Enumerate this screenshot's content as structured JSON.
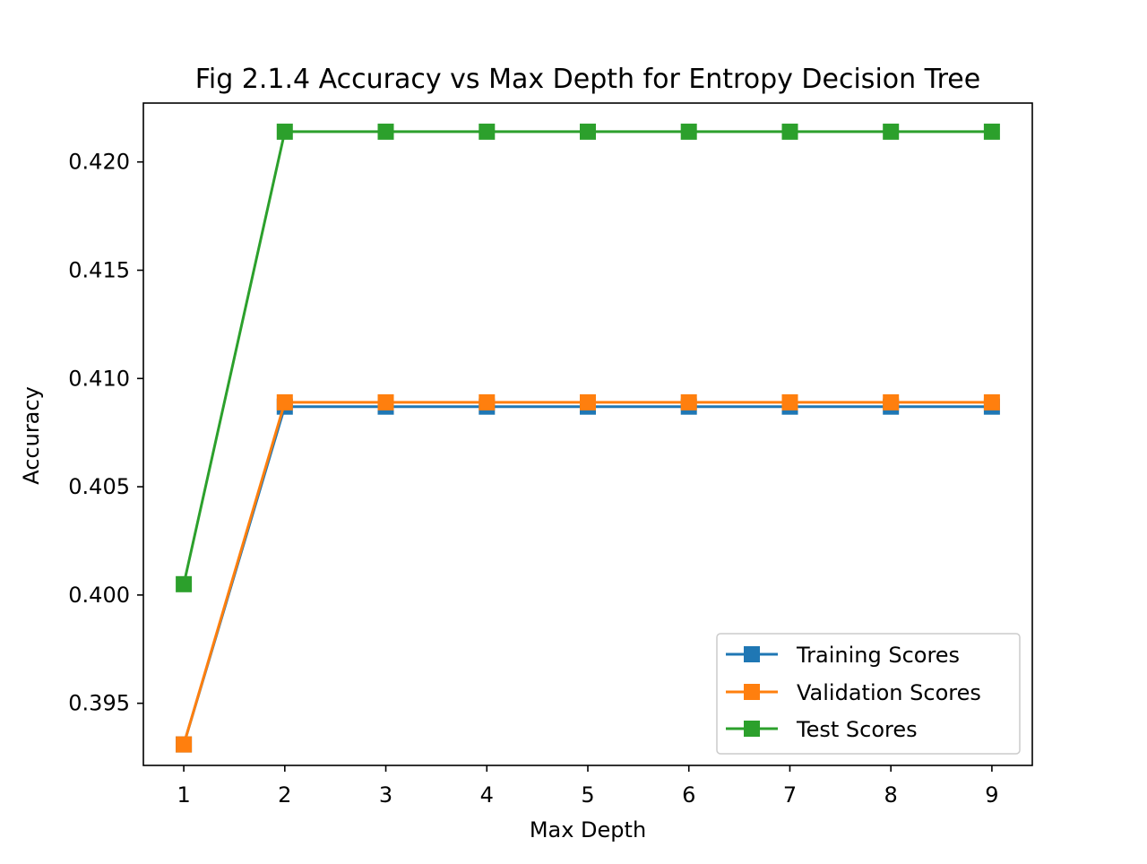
{
  "chart_data": {
    "type": "line",
    "title": "Fig 2.1.4 Accuracy vs Max Depth for Entropy Decision Tree",
    "xlabel": "Max Depth",
    "ylabel": "Accuracy",
    "x": [
      1,
      2,
      3,
      4,
      5,
      6,
      7,
      8,
      9
    ],
    "xticks": [
      "1",
      "2",
      "3",
      "4",
      "5",
      "6",
      "7",
      "8",
      "9"
    ],
    "xlim": [
      0.6,
      9.4
    ],
    "yticks": [
      "0.395",
      "0.400",
      "0.405",
      "0.410",
      "0.415",
      "0.420"
    ],
    "ytick_values": [
      0.395,
      0.4,
      0.405,
      0.41,
      0.415,
      0.42
    ],
    "ylim": [
      0.39213,
      0.42272
    ],
    "grid": false,
    "legend_position": "lower-right",
    "series": [
      {
        "name": "Training Scores",
        "color": "#1f77b4",
        "marker": "square",
        "values": [
          0.3931,
          0.4087,
          0.4087,
          0.4087,
          0.4087,
          0.4087,
          0.4087,
          0.4087,
          0.4087
        ]
      },
      {
        "name": "Validation Scores",
        "color": "#ff7f0e",
        "marker": "square",
        "values": [
          0.3931,
          0.4089,
          0.4089,
          0.4089,
          0.4089,
          0.4089,
          0.4089,
          0.4089,
          0.4089
        ]
      },
      {
        "name": "Test Scores",
        "color": "#2ca02c",
        "marker": "square",
        "values": [
          0.4005,
          0.4214,
          0.4214,
          0.4214,
          0.4214,
          0.4214,
          0.4214,
          0.4214,
          0.4214
        ]
      }
    ]
  }
}
